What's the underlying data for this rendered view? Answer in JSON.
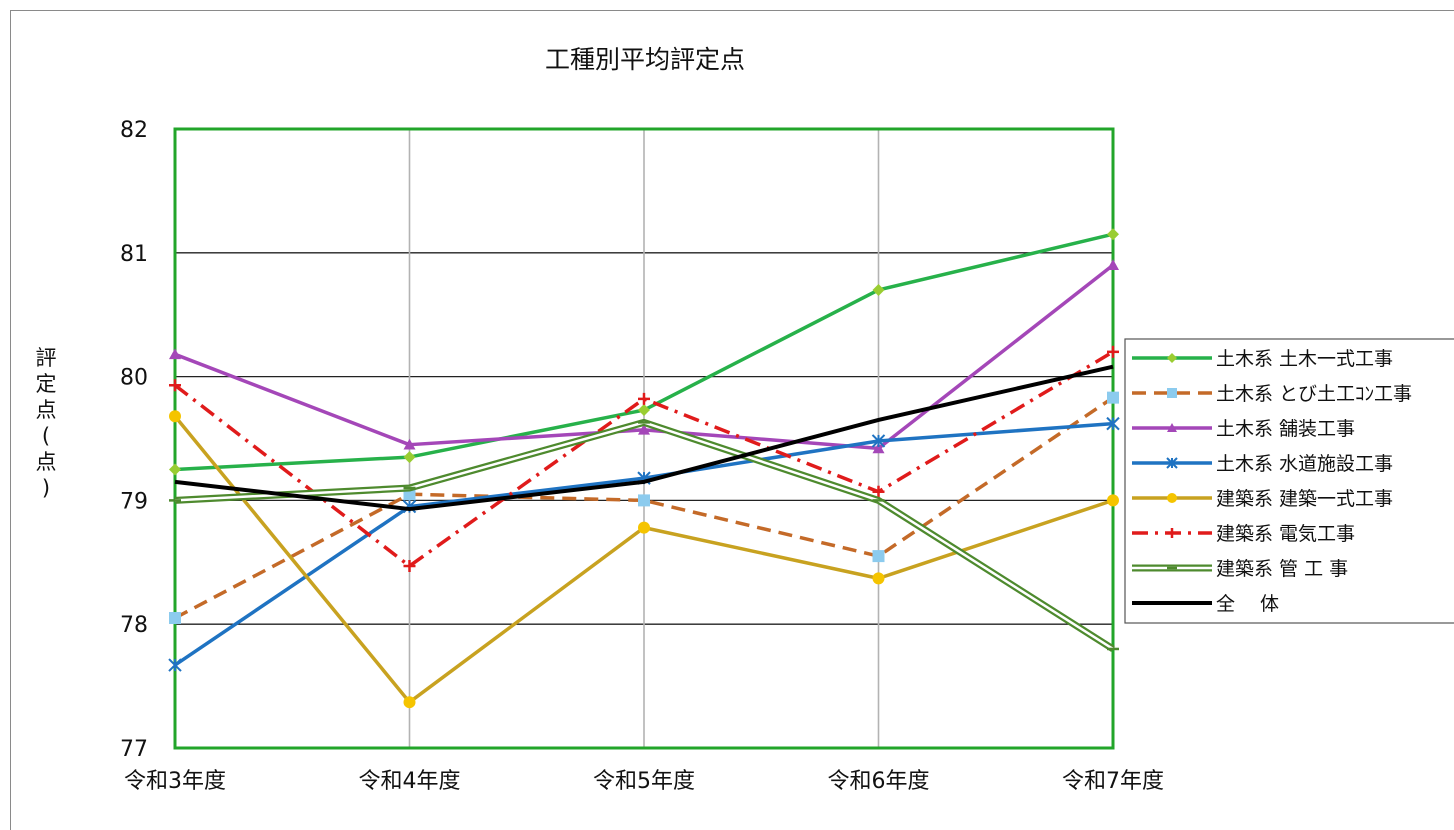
{
  "chart_data": {
    "type": "line",
    "title": "工種別平均評定点",
    "ylabel": "評定点(点)",
    "xlabel": "",
    "categories": [
      "令和3年度",
      "令和4年度",
      "令和5年度",
      "令和6年度",
      "令和7年度"
    ],
    "ylim": [
      77,
      82
    ],
    "yticks": [
      77,
      78,
      79,
      80,
      81,
      82
    ],
    "grid": true,
    "legend_position": "right",
    "series": [
      {
        "name": "土木系 土木一式工事",
        "values": [
          79.25,
          79.35,
          79.73,
          80.7,
          81.15
        ],
        "color": "#27b14a",
        "dash": "solid",
        "marker": "diamond",
        "marker_color": "#9acd32"
      },
      {
        "name": "土木系 とび土工ｺﾝ工事",
        "values": [
          78.05,
          79.05,
          79.0,
          78.55,
          79.83
        ],
        "color": "#c46a28",
        "dash": "dashed",
        "marker": "square",
        "marker_color": "#8ccbee"
      },
      {
        "name": "土木系 舗装工事",
        "values": [
          80.18,
          79.45,
          79.57,
          79.42,
          80.9
        ],
        "color": "#a447b8",
        "dash": "solid",
        "marker": "triangle",
        "marker_color": "#a447b8"
      },
      {
        "name": "土木系 水道施設工事",
        "values": [
          77.67,
          78.95,
          79.18,
          79.48,
          79.62
        ],
        "color": "#1f73c2",
        "dash": "solid",
        "marker": "star",
        "marker_color": "#1f73c2"
      },
      {
        "name": "建築系 建築一式工事",
        "values": [
          79.68,
          77.37,
          78.78,
          78.37,
          79.0
        ],
        "color": "#c8a220",
        "dash": "solid",
        "marker": "circle",
        "marker_color": "#f5c400"
      },
      {
        "name": "建築系 電気工事",
        "values": [
          79.93,
          78.47,
          79.82,
          79.07,
          80.2
        ],
        "color": "#e01b1b",
        "dash": "dashdot",
        "marker": "plus",
        "marker_color": "#e01b1b"
      },
      {
        "name": "建築系 管 工 事",
        "values": [
          79.0,
          79.1,
          79.63,
          79.0,
          77.8
        ],
        "color": "#4e8a2e",
        "dash": "double",
        "marker": "dash",
        "marker_color": "#4e8a2e"
      },
      {
        "name": "全　 体",
        "values": [
          79.15,
          78.93,
          79.15,
          79.65,
          80.08
        ],
        "color": "#000000",
        "dash": "solid",
        "marker": "none",
        "marker_color": "#000000"
      }
    ]
  }
}
